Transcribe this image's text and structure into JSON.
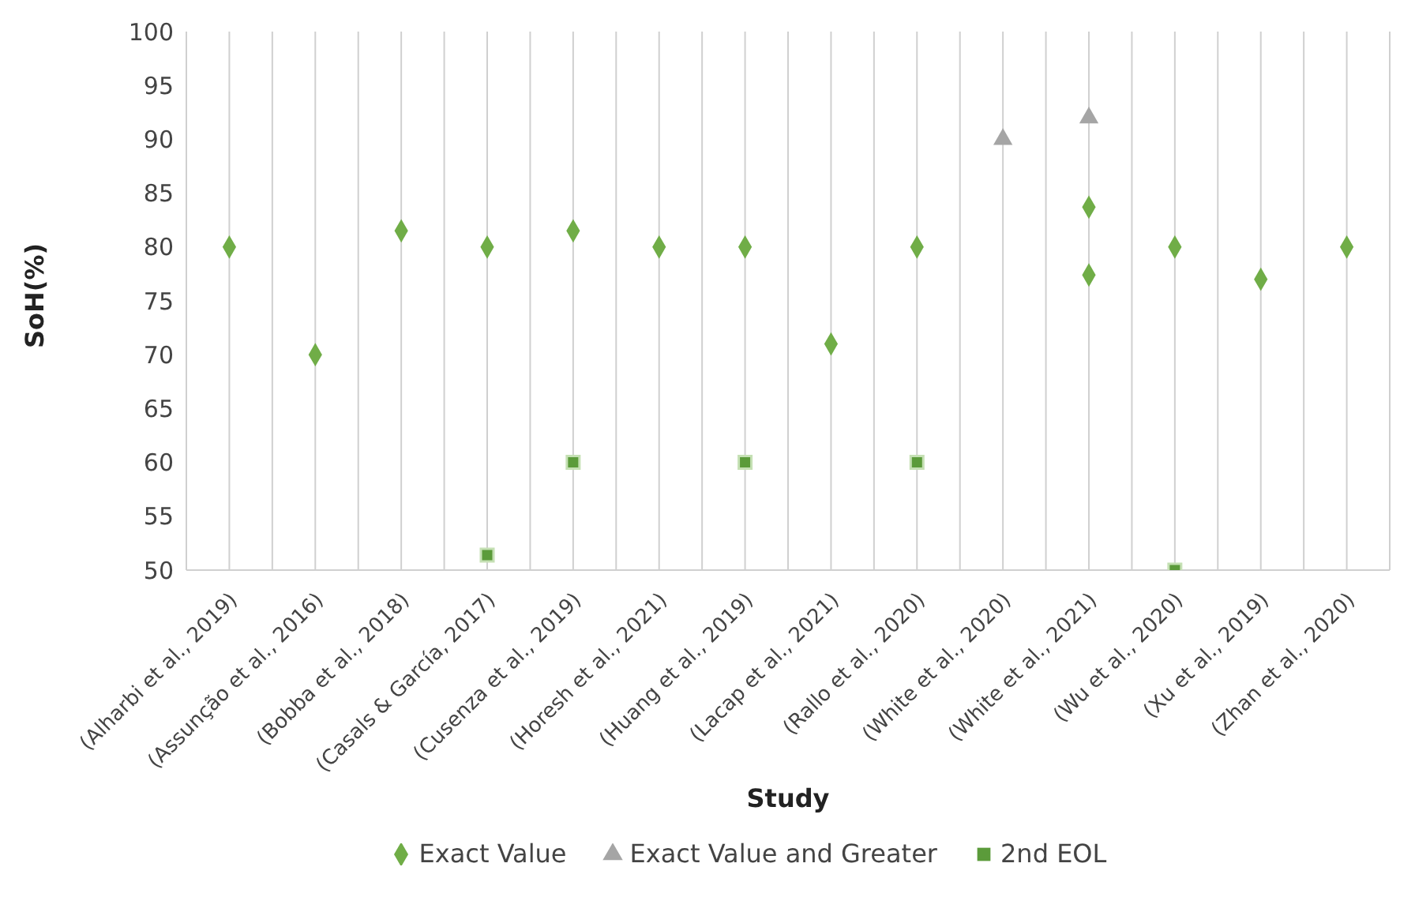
{
  "chart_data": {
    "type": "scatter",
    "xlabel": "Study",
    "ylabel": "SoH(%)",
    "categories": [
      "(Alharbi et al., 2019)",
      "(Assunção et al., 2016)",
      "(Bobba et al., 2018)",
      "(Casals & García, 2017)",
      "(Cusenza et al., 2019)",
      "(Horesh et al., 2021)",
      "(Huang et al., 2019)",
      "(Lacap et al., 2021)",
      "(Rallo et al., 2020)",
      "(White et al., 2020)",
      "(White et al., 2021)",
      "(Wu et al., 2020)",
      "(Xu et al., 2019)",
      "(Zhan et al., 2020)"
    ],
    "series": [
      {
        "name": "Exact Value",
        "color": "#70ad47",
        "marker": "diamond",
        "values": [
          80,
          70,
          81.5,
          80,
          81.5,
          80,
          80,
          71,
          80,
          null,
          83.7,
          80,
          77,
          80
        ]
      },
      {
        "color": "#70ad47",
        "marker": "diamond",
        "values": [
          null,
          null,
          null,
          null,
          null,
          null,
          null,
          null,
          null,
          null,
          77.4,
          null,
          null,
          null
        ]
      },
      {
        "name": "Exact Value and Greater",
        "color": "#a5a5a5",
        "marker": "triangle",
        "values": [
          null,
          null,
          null,
          null,
          null,
          null,
          null,
          null,
          null,
          90,
          92,
          null,
          null,
          null
        ]
      },
      {
        "name": "2nd EOL",
        "color": "#5b9b3a",
        "marker": "square",
        "values": [
          null,
          null,
          null,
          51.4,
          60,
          null,
          60,
          null,
          60,
          null,
          null,
          50,
          null,
          null
        ]
      }
    ],
    "ylim": [
      50,
      100
    ],
    "yticks": [
      50,
      55,
      60,
      65,
      70,
      75,
      80,
      85,
      90,
      95,
      100
    ],
    "grid": "x",
    "legend": "bottom"
  }
}
